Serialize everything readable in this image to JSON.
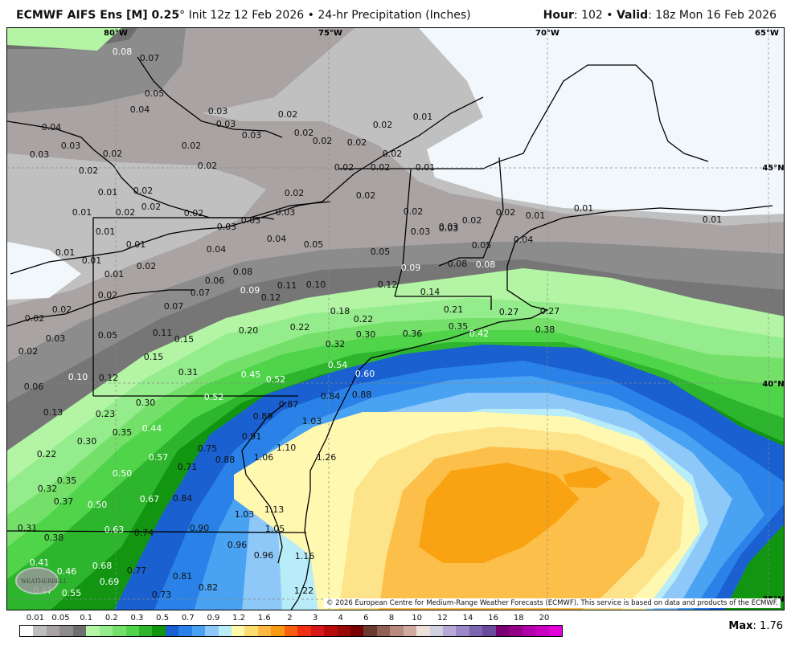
{
  "header": {
    "model": "ECMWF AIFS Ens [M] 0.25",
    "degree": "°",
    "init": "Init 12z 12 Feb 2026",
    "sep": "•",
    "product": "24-hr Precipitation (Inches)",
    "hour_label": "Hour",
    "hour": "102",
    "valid_label": "Valid",
    "valid": "18z Mon 16 Feb 2026"
  },
  "map": {
    "grid_labels": [
      "80°W",
      "75°W",
      "70°W",
      "65°W",
      "45°N",
      "40°N",
      "35°N"
    ],
    "copyright": "© 2026 European Centre for Medium-Range Weather Forecasts (ECMWF). This service is based on data and products of the ECMWF.",
    "logo_text": "WEATHERBELL",
    "point_values": [
      "0.08",
      "0.07",
      "0.05",
      "0.04",
      "0.03",
      "0.03",
      "0.03",
      "0.04",
      "0.03",
      "0.02",
      "0.03",
      "0.02",
      "0.02",
      "0.02",
      "0.01",
      "0.02",
      "0.02",
      "0.02",
      "0.01",
      "0.02",
      "0.03",
      "0.03",
      "0.02",
      "0.02",
      "0.02",
      "0.02",
      "0.02",
      "0.01",
      "0.02",
      "0.02",
      "0.02",
      "0.01",
      "0.02",
      "0.02",
      "0.03",
      "0.02",
      "0.03",
      "0.02",
      "0.02",
      "0.01",
      "0.01",
      "0.01",
      "0.01",
      "0.01",
      "0.01",
      "0.01",
      "0.01",
      "0.02",
      "0.04",
      "0.08",
      "0.06",
      "0.02",
      "0.07",
      "0.09",
      "0.07",
      "0.02",
      "0.02",
      "0.03",
      "0.02",
      "0.05",
      "0.11",
      "0.15",
      "0.20",
      "0.15",
      "0.31",
      "0.45",
      "0.10",
      "0.12",
      "0.06",
      "0.30",
      "0.52",
      "0.13",
      "0.23",
      "0.03",
      "0.03",
      "0.04",
      "0.04",
      "0.05",
      "0.05",
      "0.05",
      "0.09",
      "0.08",
      "0.08",
      "0.11",
      "0.12",
      "0.10",
      "0.12",
      "0.14",
      "0.18",
      "0.22",
      "0.22",
      "0.21",
      "0.27",
      "0.35",
      "0.36",
      "0.42",
      "0.30",
      "0.32",
      "0.54",
      "0.60",
      "0.52",
      "0.84",
      "0.88",
      "0.87",
      "0.27",
      "0.38",
      "0.44",
      "0.35",
      "0.30",
      "0.22",
      "0.75",
      "0.57",
      "0.71",
      "0.88",
      "0.91",
      "0.50",
      "0.35",
      "0.32",
      "0.37",
      "0.50",
      "0.67",
      "0.84",
      "1.03",
      "0.31",
      "0.63",
      "0.74",
      "0.90",
      "0.38",
      "0.96",
      "0.41",
      "0.46",
      "0.68",
      "0.77",
      "0.81",
      "0.82",
      "0.47",
      "0.55",
      "0.69",
      "0.73",
      "0.89",
      "1.03",
      "1.10",
      "1.06",
      "1.26",
      "1.13",
      "1.05",
      "0.96",
      "1.16",
      "1.22"
    ]
  },
  "legend": {
    "tick_labels": [
      "0.01",
      "0.05",
      "0.1",
      "0.2",
      "0.3",
      "0.5",
      "0.7",
      "0.9",
      "1.2",
      "1.6",
      "2",
      "3",
      "4",
      "6",
      "8",
      "10",
      "12",
      "14",
      "16",
      "18",
      "20"
    ],
    "colors": [
      "#ffffff",
      "#bdbdbd",
      "#a9a2a2",
      "#8c8c8c",
      "#6e6e6e",
      "#b3f5a5",
      "#94ec8c",
      "#74e06a",
      "#4fd44a",
      "#2db52d",
      "#129612",
      "#1a60d0",
      "#2a82e8",
      "#4aa2f2",
      "#8ec8f8",
      "#b8ecf8",
      "#fff8a8",
      "#fddc70",
      "#fcb840",
      "#fa9a10",
      "#f86010",
      "#f03010",
      "#d81818",
      "#b80c0c",
      "#980808",
      "#780000",
      "#6a3a30",
      "#906058",
      "#b88a80",
      "#d0aaa0",
      "#ece0d8",
      "#d0d0e0",
      "#b8a8d8",
      "#9c88c8",
      "#7c64b0",
      "#6a4a9c",
      "#780070",
      "#920088",
      "#b000a8",
      "#c800c0",
      "#e000d8"
    ],
    "max_label": "Max",
    "max_value": "1.76"
  }
}
